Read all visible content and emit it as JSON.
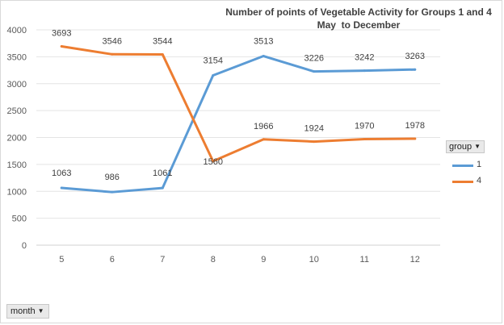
{
  "chart_data": {
    "type": "line",
    "title": "Number of points of Vegetable Activity for Groups 1 and 4",
    "subtitle": "May  to December",
    "xlabel": "month",
    "ylabel": "",
    "categories": [
      "5",
      "6",
      "7",
      "8",
      "9",
      "10",
      "11",
      "12"
    ],
    "ylim": [
      0,
      4000
    ],
    "yticks": [
      0,
      500,
      1000,
      1500,
      2000,
      2500,
      3000,
      3500,
      4000
    ],
    "grid": true,
    "legend_title": "group",
    "legend_position": "right",
    "series": [
      {
        "name": "1",
        "color": "#5b9bd5",
        "values": [
          1063,
          986,
          1061,
          3154,
          3513,
          3226,
          3242,
          3263
        ]
      },
      {
        "name": "4",
        "color": "#ed7d31",
        "values": [
          3693,
          3546,
          3544,
          1560,
          1966,
          1924,
          1970,
          1978
        ]
      }
    ]
  },
  "filters": {
    "month_button": "month",
    "group_button": "group",
    "dropdown_glyph": "▼"
  }
}
